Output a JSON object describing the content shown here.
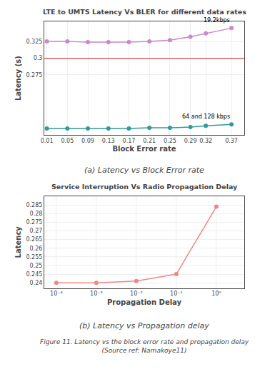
{
  "chart_data": [
    {
      "type": "line",
      "title": "LTE to UMTS Latency Vs BLER for different data rates",
      "x_label": "Block Error rate",
      "y_label": "Latency (s)",
      "x": [
        0.01,
        0.05,
        0.09,
        0.13,
        0.17,
        0.21,
        0.25,
        0.29,
        0.32,
        0.37
      ],
      "series": [
        {
          "name": "19.2kbps",
          "color": "#cc88cc",
          "marker": "circle",
          "values": [
            0.325,
            0.325,
            0.324,
            0.324,
            0.324,
            0.325,
            0.327,
            0.332,
            0.337,
            0.345
          ]
        },
        {
          "name": "64 and 128 kbps",
          "color": "#339999",
          "marker": "circle",
          "values": [
            0.195,
            0.195,
            0.195,
            0.195,
            0.195,
            0.196,
            0.196,
            0.197,
            0.199,
            0.201
          ]
        }
      ],
      "reference_line": {
        "y": 0.3,
        "color": "#cc4444"
      },
      "xlim": [
        0.005,
        0.395
      ],
      "xticks": [
        0.01,
        0.05,
        0.09,
        0.13,
        0.17,
        0.21,
        0.25,
        0.29,
        0.32,
        0.37
      ],
      "ylim": [
        0.185,
        0.355
      ],
      "yticks": [
        0.275,
        0.3,
        0.325
      ],
      "grid": true,
      "annotations": [
        "(a) Latency vs Block Error rate"
      ]
    },
    {
      "type": "line",
      "title": "Service Interruption Vs Radio Propagation Delay",
      "x_label": "Propagation Delay",
      "y_label": "Latency",
      "x": [
        0.0001,
        0.001,
        0.01,
        0.1,
        1.0
      ],
      "values": [
        0.24,
        0.24,
        0.241,
        0.245,
        0.284
      ],
      "color": "#ee8888",
      "marker": "circle",
      "log": "x",
      "xlim": [
        5e-05,
        5
      ],
      "xticks": [
        {
          "value": 0.0001,
          "label": "10⁻⁴"
        },
        {
          "value": 0.001,
          "label": "10⁻³"
        },
        {
          "value": 0.01,
          "label": "10⁻²"
        },
        {
          "value": 0.1,
          "label": "10⁻¹"
        },
        {
          "value": 1,
          "label": "10⁰"
        }
      ],
      "ylim": [
        0.237,
        0.29
      ],
      "yticks": [
        0.24,
        0.245,
        0.25,
        0.255,
        0.26,
        0.265,
        0.27,
        0.275,
        0.28,
        0.285
      ],
      "grid": true,
      "annotations": [
        "(b) Latency vs Propagation delay"
      ]
    }
  ],
  "annotations": [
    "Figure 11. Latency vs the block error rate and propagation delay\n(Source ref: Namakoye11)"
  ]
}
